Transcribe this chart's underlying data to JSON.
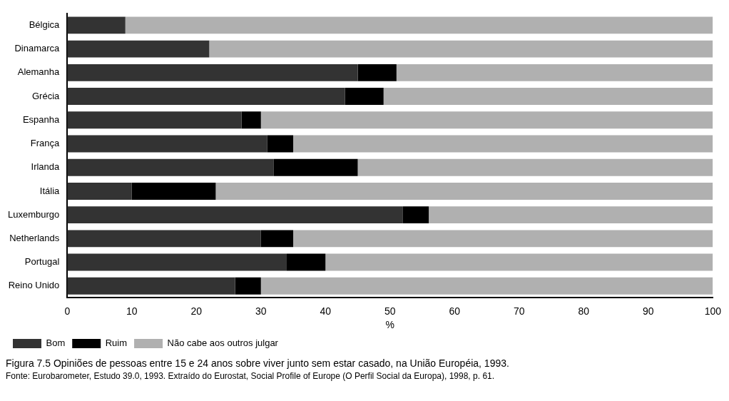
{
  "chart_data": {
    "type": "bar",
    "orientation": "horizontal",
    "stacked": true,
    "categories": [
      "Bélgica",
      "Dinamarca",
      "Alemanha",
      "Grécia",
      "Espanha",
      "França",
      "Irlanda",
      "Itália",
      "Luxemburgo",
      "Netherlands",
      "Portugal",
      "Reino Unido"
    ],
    "series": [
      {
        "name": "Bom",
        "color": "#333333",
        "values": [
          9,
          22,
          45,
          43,
          27,
          31,
          32,
          10,
          52,
          30,
          34,
          26
        ]
      },
      {
        "name": "Ruim",
        "color": "#000000",
        "values": [
          0,
          0,
          6,
          6,
          3,
          4,
          13,
          13,
          4,
          5,
          6,
          4
        ]
      },
      {
        "name": "Não cabe aos outros julgar",
        "color": "#b0b0b0",
        "values": [
          91,
          78,
          49,
          51,
          70,
          65,
          55,
          77,
          44,
          65,
          60,
          70
        ]
      }
    ],
    "xlabel": "%",
    "xlim": [
      0,
      100
    ],
    "xticks": [
      0,
      10,
      20,
      30,
      40,
      50,
      60,
      70,
      80,
      90,
      100
    ],
    "grid": false,
    "legend": "bottom",
    "annotations": [
      "Figura 7.5    Opiniões de pessoas entre 15 e 24 anos sobre viver junto sem estar casado, na União Européia, 1993.",
      "Fonte: Eurobarometer, Estudo 39.0, 1993. Extraído do Eurostat, Social Profile of Europe (O Perfil Social da Europa), 1998, p. 61."
    ]
  }
}
